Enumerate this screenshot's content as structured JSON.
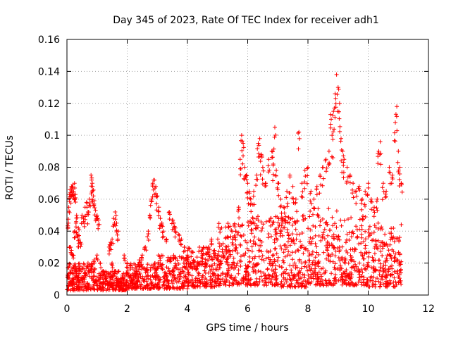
{
  "chart_data": {
    "type": "scatter",
    "title": "Day 345 of 2023, Rate Of TEC Index for receiver adh1",
    "xlabel": "GPS time / hours",
    "ylabel": "ROTI / TECUs",
    "xlim": [
      0,
      12
    ],
    "ylim": [
      0,
      0.16
    ],
    "xticks": [
      0,
      2,
      4,
      6,
      8,
      10,
      12
    ],
    "yticks": [
      0,
      0.02,
      0.04,
      0.06,
      0.08,
      0.1,
      0.12,
      0.14,
      0.16
    ],
    "xtick_labels": [
      "0",
      "2",
      "4",
      "6",
      "8",
      "10",
      "12"
    ],
    "ytick_labels": [
      "0",
      "0.02",
      "0.04",
      "0.06",
      "0.08",
      "0.1",
      "0.12",
      "0.14",
      "0.16"
    ],
    "grid": true,
    "marker": "+",
    "color": "#ff0000",
    "series": [
      {
        "name": "ROTI",
        "points": [
          [
            0.05,
            0.006
          ],
          [
            0.05,
            0.012
          ],
          [
            0.05,
            0.045
          ],
          [
            0.06,
            0.055
          ],
          [
            0.1,
            0.066
          ],
          [
            0.12,
            0.064
          ],
          [
            0.15,
            0.068
          ],
          [
            0.18,
            0.067
          ],
          [
            0.2,
            0.069
          ],
          [
            0.22,
            0.065
          ],
          [
            0.25,
            0.07
          ],
          [
            0.28,
            0.063
          ],
          [
            0.1,
            0.03
          ],
          [
            0.15,
            0.028
          ],
          [
            0.2,
            0.025
          ],
          [
            0.25,
            0.04
          ],
          [
            0.3,
            0.045
          ],
          [
            0.32,
            0.05
          ],
          [
            0.35,
            0.038
          ],
          [
            0.38,
            0.042
          ],
          [
            0.4,
            0.035
          ],
          [
            0.45,
            0.033
          ],
          [
            0.1,
            0.008
          ],
          [
            0.2,
            0.01
          ],
          [
            0.3,
            0.012
          ],
          [
            0.4,
            0.009
          ],
          [
            0.5,
            0.011
          ],
          [
            0.6,
            0.014
          ],
          [
            0.5,
            0.05
          ],
          [
            0.55,
            0.048
          ],
          [
            0.6,
            0.055
          ],
          [
            0.65,
            0.058
          ],
          [
            0.7,
            0.052
          ],
          [
            0.75,
            0.06
          ],
          [
            0.8,
            0.075
          ],
          [
            0.82,
            0.072
          ],
          [
            0.85,
            0.068
          ],
          [
            0.88,
            0.062
          ],
          [
            0.9,
            0.057
          ],
          [
            0.95,
            0.053
          ],
          [
            1.0,
            0.05
          ],
          [
            1.05,
            0.047
          ],
          [
            0.7,
            0.02
          ],
          [
            0.8,
            0.018
          ],
          [
            0.9,
            0.022
          ],
          [
            1.0,
            0.025
          ],
          [
            1.1,
            0.02
          ],
          [
            1.2,
            0.015
          ],
          [
            1.3,
            0.012
          ],
          [
            1.4,
            0.03
          ],
          [
            1.45,
            0.033
          ],
          [
            1.5,
            0.035
          ],
          [
            1.55,
            0.048
          ],
          [
            1.6,
            0.052
          ],
          [
            1.65,
            0.045
          ],
          [
            1.7,
            0.04
          ],
          [
            1.5,
            0.02
          ],
          [
            1.6,
            0.015
          ],
          [
            1.7,
            0.01
          ],
          [
            1.8,
            0.008
          ],
          [
            1.9,
            0.025
          ],
          [
            2.0,
            0.02
          ],
          [
            2.1,
            0.012
          ],
          [
            2.2,
            0.01
          ],
          [
            2.3,
            0.015
          ],
          [
            2.4,
            0.022
          ],
          [
            2.5,
            0.025
          ],
          [
            2.6,
            0.03
          ],
          [
            2.7,
            0.04
          ],
          [
            2.75,
            0.05
          ],
          [
            2.8,
            0.06
          ],
          [
            2.85,
            0.07
          ],
          [
            2.9,
            0.072
          ],
          [
            2.95,
            0.068
          ],
          [
            3.0,
            0.062
          ],
          [
            3.05,
            0.055
          ],
          [
            3.1,
            0.048
          ],
          [
            3.15,
            0.045
          ],
          [
            3.2,
            0.04
          ],
          [
            3.3,
            0.035
          ],
          [
            3.4,
            0.052
          ],
          [
            3.5,
            0.047
          ],
          [
            3.55,
            0.045
          ],
          [
            3.6,
            0.042
          ],
          [
            3.7,
            0.038
          ],
          [
            3.8,
            0.035
          ],
          [
            3.9,
            0.03
          ],
          [
            4.0,
            0.025
          ],
          [
            4.1,
            0.02
          ],
          [
            4.2,
            0.022
          ],
          [
            4.3,
            0.018
          ],
          [
            4.4,
            0.02
          ],
          [
            4.5,
            0.025
          ],
          [
            4.6,
            0.02
          ],
          [
            4.7,
            0.03
          ],
          [
            4.8,
            0.035
          ],
          [
            4.9,
            0.028
          ],
          [
            5.0,
            0.025
          ],
          [
            5.1,
            0.02
          ],
          [
            5.2,
            0.025
          ],
          [
            5.3,
            0.03
          ],
          [
            5.4,
            0.028
          ],
          [
            5.5,
            0.035
          ],
          [
            5.6,
            0.04
          ],
          [
            5.7,
            0.055
          ],
          [
            5.75,
            0.085
          ],
          [
            5.8,
            0.1
          ],
          [
            5.85,
            0.095
          ],
          [
            5.9,
            0.08
          ],
          [
            5.95,
            0.075
          ],
          [
            6.0,
            0.07
          ],
          [
            6.05,
            0.065
          ],
          [
            6.1,
            0.06
          ],
          [
            6.2,
            0.065
          ],
          [
            6.3,
            0.075
          ],
          [
            6.35,
            0.095
          ],
          [
            6.4,
            0.098
          ],
          [
            6.45,
            0.088
          ],
          [
            6.5,
            0.08
          ],
          [
            6.6,
            0.07
          ],
          [
            6.7,
            0.085
          ],
          [
            6.8,
            0.09
          ],
          [
            6.85,
            0.082
          ],
          [
            6.9,
            0.105
          ],
          [
            6.95,
            0.078
          ],
          [
            7.0,
            0.07
          ],
          [
            7.1,
            0.06
          ],
          [
            7.2,
            0.055
          ],
          [
            7.3,
            0.065
          ],
          [
            7.4,
            0.075
          ],
          [
            7.5,
            0.068
          ],
          [
            7.6,
            0.06
          ],
          [
            7.7,
            0.102
          ],
          [
            7.8,
            0.07
          ],
          [
            7.9,
            0.078
          ],
          [
            8.0,
            0.08
          ],
          [
            8.1,
            0.065
          ],
          [
            8.2,
            0.06
          ],
          [
            8.3,
            0.068
          ],
          [
            8.4,
            0.075
          ],
          [
            8.5,
            0.08
          ],
          [
            8.6,
            0.085
          ],
          [
            8.7,
            0.09
          ],
          [
            8.75,
            0.113
          ],
          [
            8.8,
            0.1
          ],
          [
            8.85,
            0.115
          ],
          [
            8.9,
            0.126
          ],
          [
            8.95,
            0.138
          ],
          [
            9.0,
            0.13
          ],
          [
            9.05,
            0.12
          ],
          [
            9.1,
            0.098
          ],
          [
            9.15,
            0.09
          ],
          [
            9.2,
            0.085
          ],
          [
            9.3,
            0.08
          ],
          [
            9.4,
            0.075
          ],
          [
            9.5,
            0.07
          ],
          [
            9.6,
            0.065
          ],
          [
            9.7,
            0.068
          ],
          [
            9.8,
            0.06
          ],
          [
            9.9,
            0.065
          ],
          [
            10.0,
            0.07
          ],
          [
            10.1,
            0.06
          ],
          [
            10.2,
            0.055
          ],
          [
            10.3,
            0.06
          ],
          [
            10.35,
            0.09
          ],
          [
            10.4,
            0.096
          ],
          [
            10.5,
            0.07
          ],
          [
            10.6,
            0.065
          ],
          [
            10.7,
            0.08
          ],
          [
            10.8,
            0.075
          ],
          [
            10.9,
            0.108
          ],
          [
            10.95,
            0.118
          ],
          [
            11.0,
            0.09
          ],
          [
            11.05,
            0.08
          ],
          [
            11.1,
            0.07
          ]
        ]
      }
    ],
    "dense_band": {
      "segments": [
        [
          0.0,
          1.0,
          0.003,
          0.02
        ],
        [
          1.0,
          2.0,
          0.003,
          0.015
        ],
        [
          2.0,
          3.0,
          0.004,
          0.02
        ],
        [
          3.0,
          4.0,
          0.004,
          0.025
        ],
        [
          4.0,
          5.0,
          0.005,
          0.03
        ],
        [
          5.0,
          6.0,
          0.006,
          0.045
        ],
        [
          6.0,
          7.0,
          0.006,
          0.05
        ],
        [
          7.0,
          8.0,
          0.005,
          0.05
        ],
        [
          8.0,
          9.0,
          0.006,
          0.055
        ],
        [
          9.0,
          10.0,
          0.006,
          0.05
        ],
        [
          10.0,
          11.1,
          0.005,
          0.045
        ]
      ],
      "points_per_hour": 180
    }
  }
}
